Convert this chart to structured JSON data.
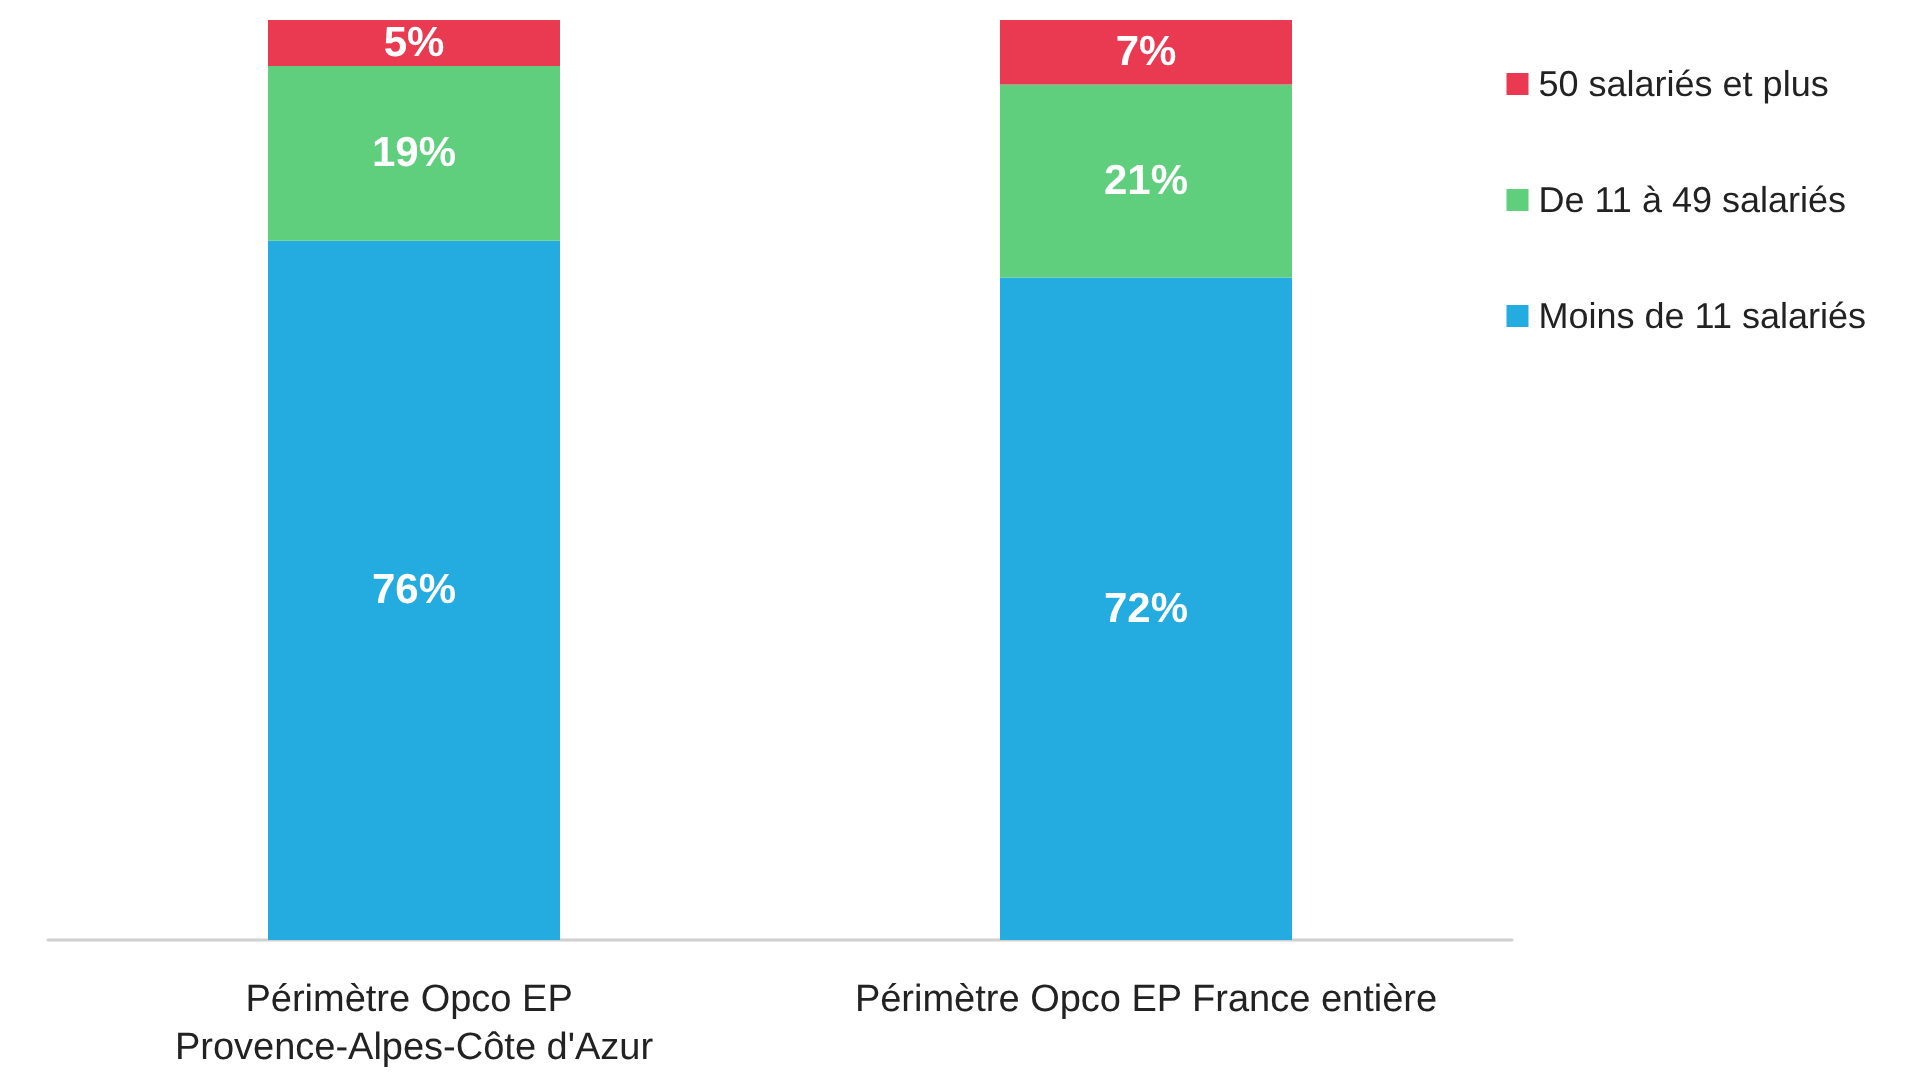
{
  "chart_data": {
    "type": "bar",
    "stacked": true,
    "legend": "top right",
    "categories": [
      "Périmètre Opco EP Provence-Alpes-Côte d'Azur",
      "Périmètre Opco EP France entière"
    ],
    "series": [
      {
        "name": "Moins de 11 salariés",
        "color": "#24abe0",
        "values": [
          76,
          72
        ],
        "value_labels": [
          "76%",
          "72%"
        ]
      },
      {
        "name": "De 11 à 49 salariés",
        "color": "#5fcf7e",
        "values": [
          19,
          21
        ],
        "value_labels": [
          "19%",
          "21%"
        ]
      },
      {
        "name": "50 salariés et plus",
        "color": "#e93a52",
        "values": [
          5,
          7
        ],
        "value_labels": [
          "5%",
          "7%"
        ]
      }
    ]
  }
}
